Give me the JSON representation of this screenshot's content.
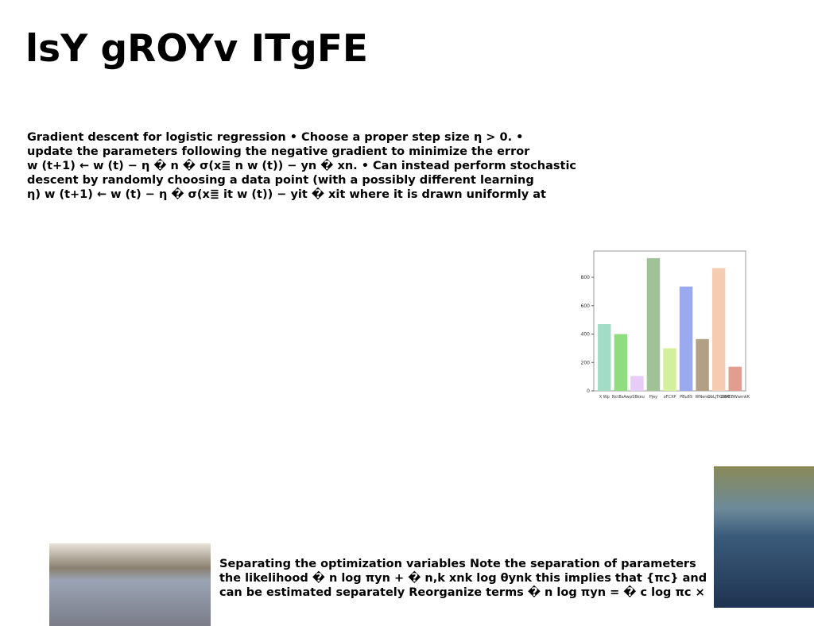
{
  "title": "lsY gROYv ITgFE",
  "body": {
    "lines": [
      "Gradient descent for logistic regression • Choose a proper step size η > 0. •",
      "update the parameters following the negative gradient to minimize the error",
      "w (t+1) ← w (t) − η � n � σ(x≣ n w (t)) − yn � xn. • Can instead perform stochastic",
      "descent by randomly choosing a data point (with a possibly different learning",
      "η) w (t+1) ← w (t) − η � σ(x≣ it w (t)) − yit � xit where it is drawn uniformly at"
    ]
  },
  "caption": {
    "lines": [
      "Separating the optimization variables Note the separation of parameters",
      "the likelihood � n log πyn + � n,k xnk log θynk this implies that {πc} and",
      "can be estimated separately Reorganize terms � n log πyn = � c log πc ×"
    ]
  },
  "chart_data": {
    "type": "bar",
    "categories": [
      "X Wp",
      "NctBsAw",
      "pSBkeu",
      "Pjey",
      "oFCXP",
      "PBu8S",
      "WNenu",
      "ObLjTKuWE",
      "ZRAEBWwmkK"
    ],
    "values": [
      470,
      400,
      105,
      935,
      300,
      735,
      365,
      865,
      170
    ],
    "colors": [
      "#a3dcc6",
      "#90dc80",
      "#e6ccf6",
      "#9fc297",
      "#d4f09c",
      "#9ba9f0",
      "#b2a085",
      "#f5ccb2",
      "#e29c90"
    ],
    "ylim": [
      0,
      985
    ],
    "yticks": [
      0,
      200,
      400,
      600,
      800
    ]
  }
}
